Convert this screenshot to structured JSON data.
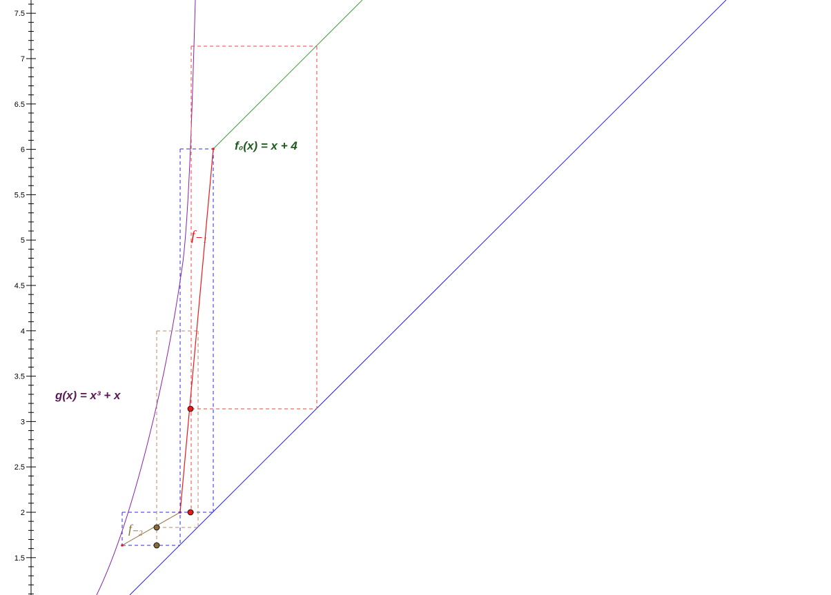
{
  "y_axis": {
    "ticks": [
      "1.5",
      "2",
      "2.5",
      "3",
      "3.5",
      "4",
      "4.5",
      "5",
      "5.5",
      "6",
      "6.5",
      "7",
      "7.5"
    ]
  },
  "labels": {
    "g": "g(x) = x³ + x",
    "f0": "f₀(x) = x + 4",
    "f_minus1": "f₋₁",
    "f_minus2": "f₋₂"
  },
  "colors": {
    "g_curve": "#8B1FA8",
    "identity_line": "#1E1EE6",
    "f0_line": "#3E9E3E",
    "f_minus1": "#E81818",
    "f_minus2": "#8B6B3A",
    "blue_dashed": "#2B2BE0",
    "red_dashed": "#F04040",
    "brown_dashed": "#B88A6A",
    "g_label": "#5A1A5A",
    "f0_label": "#1E5A1E"
  }
}
